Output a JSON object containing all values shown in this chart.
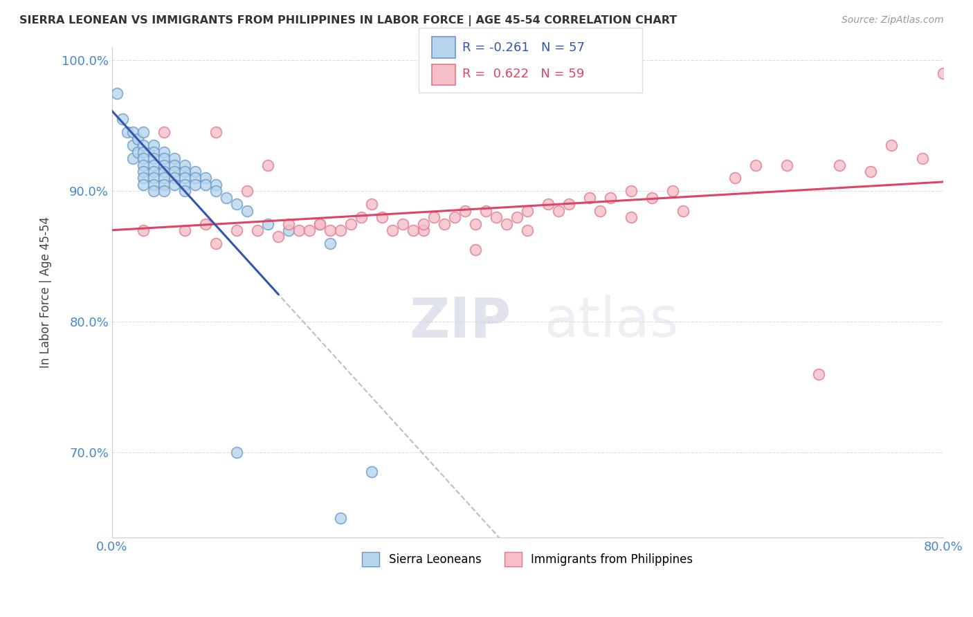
{
  "title": "SIERRA LEONEAN VS IMMIGRANTS FROM PHILIPPINES IN LABOR FORCE | AGE 45-54 CORRELATION CHART",
  "source": "Source: ZipAtlas.com",
  "ylabel": "In Labor Force | Age 45-54",
  "xlim": [
    0.0,
    0.8
  ],
  "ylim": [
    0.635,
    1.01
  ],
  "xticks": [
    0.0,
    0.8
  ],
  "xticklabels": [
    "0.0%",
    "80.0%"
  ],
  "yticks": [
    0.7,
    0.8,
    0.9,
    1.0
  ],
  "yticklabels": [
    "70.0%",
    "80.0%",
    "90.0%",
    "100.0%"
  ],
  "blue_color": "#b8d4ec",
  "blue_edge": "#6699cc",
  "pink_color": "#f5bec8",
  "pink_edge": "#e07888",
  "blue_line_color": "#3355aa",
  "pink_line_color": "#dd4466",
  "dashed_line_color": "#bbbbcc",
  "legend_R_blue": "-0.261",
  "legend_N_blue": "57",
  "legend_R_pink": "0.622",
  "legend_N_pink": "59",
  "legend_color_blue": "#3355aa",
  "legend_color_pink": "#dd4466",
  "watermark_zip": "ZIP",
  "watermark_atlas": "atlas",
  "blue_scatter_x": [
    0.005,
    0.01,
    0.015,
    0.02,
    0.02,
    0.02,
    0.025,
    0.025,
    0.03,
    0.03,
    0.03,
    0.03,
    0.03,
    0.03,
    0.03,
    0.03,
    0.04,
    0.04,
    0.04,
    0.04,
    0.04,
    0.04,
    0.04,
    0.04,
    0.05,
    0.05,
    0.05,
    0.05,
    0.05,
    0.05,
    0.05,
    0.06,
    0.06,
    0.06,
    0.06,
    0.06,
    0.07,
    0.07,
    0.07,
    0.07,
    0.07,
    0.08,
    0.08,
    0.08,
    0.09,
    0.09,
    0.1,
    0.1,
    0.11,
    0.12,
    0.13,
    0.15,
    0.17,
    0.21,
    0.12,
    0.22,
    0.25
  ],
  "blue_scatter_y": [
    0.975,
    0.955,
    0.945,
    0.945,
    0.935,
    0.925,
    0.94,
    0.93,
    0.945,
    0.935,
    0.93,
    0.925,
    0.92,
    0.915,
    0.91,
    0.905,
    0.935,
    0.93,
    0.925,
    0.92,
    0.915,
    0.91,
    0.905,
    0.9,
    0.93,
    0.925,
    0.92,
    0.915,
    0.91,
    0.905,
    0.9,
    0.925,
    0.92,
    0.915,
    0.91,
    0.905,
    0.92,
    0.915,
    0.91,
    0.905,
    0.9,
    0.915,
    0.91,
    0.905,
    0.91,
    0.905,
    0.905,
    0.9,
    0.895,
    0.89,
    0.885,
    0.875,
    0.87,
    0.86,
    0.7,
    0.65,
    0.685
  ],
  "pink_scatter_x": [
    0.03,
    0.05,
    0.07,
    0.09,
    0.1,
    0.12,
    0.13,
    0.15,
    0.16,
    0.17,
    0.18,
    0.19,
    0.2,
    0.21,
    0.22,
    0.23,
    0.24,
    0.25,
    0.26,
    0.27,
    0.28,
    0.29,
    0.3,
    0.31,
    0.32,
    0.33,
    0.34,
    0.35,
    0.36,
    0.37,
    0.38,
    0.39,
    0.4,
    0.42,
    0.43,
    0.44,
    0.46,
    0.47,
    0.48,
    0.5,
    0.52,
    0.54,
    0.6,
    0.65,
    0.7,
    0.75,
    0.1,
    0.14,
    0.2,
    0.3,
    0.35,
    0.4,
    0.5,
    0.55,
    0.62,
    0.68,
    0.73,
    0.78,
    0.8
  ],
  "pink_scatter_y": [
    0.87,
    0.945,
    0.87,
    0.875,
    0.945,
    0.87,
    0.9,
    0.92,
    0.865,
    0.875,
    0.87,
    0.87,
    0.875,
    0.87,
    0.87,
    0.875,
    0.88,
    0.89,
    0.88,
    0.87,
    0.875,
    0.87,
    0.87,
    0.88,
    0.875,
    0.88,
    0.885,
    0.875,
    0.885,
    0.88,
    0.875,
    0.88,
    0.885,
    0.89,
    0.885,
    0.89,
    0.895,
    0.885,
    0.895,
    0.9,
    0.895,
    0.9,
    0.91,
    0.92,
    0.92,
    0.935,
    0.86,
    0.87,
    0.875,
    0.875,
    0.855,
    0.87,
    0.88,
    0.885,
    0.92,
    0.76,
    0.915,
    0.925,
    0.99
  ]
}
